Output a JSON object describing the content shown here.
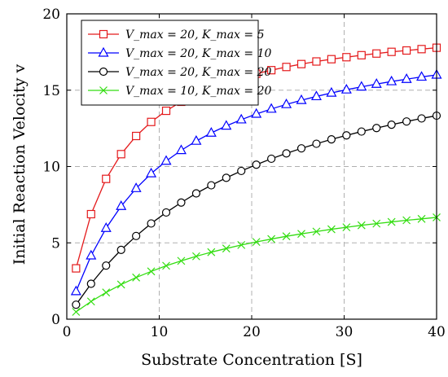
{
  "chart_data": {
    "type": "line",
    "xlabel": "Substrate Concentration [S]",
    "ylabel": "Initial Reaction Velocity v",
    "xlim": [
      0,
      40
    ],
    "ylim": [
      0,
      20
    ],
    "xticks": [
      0,
      10,
      20,
      30,
      40
    ],
    "yticks": [
      0,
      5,
      10,
      15,
      20
    ],
    "grid": "dashed",
    "legend_position": "top-left",
    "x": [
      1,
      2.625,
      4.25,
      5.875,
      7.5,
      9.125,
      10.75,
      12.375,
      14,
      15.625,
      17.25,
      18.875,
      20.5,
      22.125,
      23.75,
      25.375,
      27,
      28.625,
      30.25,
      31.875,
      33.5,
      35.125,
      36.75,
      38.375,
      40
    ],
    "series": [
      {
        "name": "V_max = 20, K_max = 5",
        "color": "#e41a1c",
        "marker": "square",
        "values": [
          3.33,
          6.88,
          9.19,
          10.81,
          12.0,
          12.92,
          13.65,
          14.24,
          14.74,
          15.15,
          15.5,
          15.81,
          16.08,
          16.31,
          16.52,
          16.71,
          16.88,
          17.03,
          17.16,
          17.29,
          17.4,
          17.51,
          17.6,
          17.69,
          17.78
        ]
      },
      {
        "name": "V_max = 20, K_max = 10",
        "color": "#0000ff",
        "marker": "triangle",
        "values": [
          1.82,
          4.16,
          5.96,
          7.4,
          8.57,
          9.54,
          10.36,
          11.06,
          11.67,
          12.2,
          12.66,
          13.07,
          13.44,
          13.77,
          14.07,
          14.34,
          14.59,
          14.82,
          15.03,
          15.22,
          15.4,
          15.57,
          15.72,
          15.87,
          16.0
        ]
      },
      {
        "name": "V_max = 20, K_max = 20",
        "color": "#000000",
        "marker": "circle",
        "values": [
          0.95,
          2.32,
          3.51,
          4.54,
          5.45,
          6.27,
          6.99,
          7.64,
          8.24,
          8.77,
          9.26,
          9.71,
          10.12,
          10.51,
          10.86,
          11.19,
          11.49,
          11.78,
          12.04,
          12.29,
          12.52,
          12.74,
          12.95,
          13.15,
          13.33
        ]
      },
      {
        "name": "V_max = 10, K_max = 20",
        "color": "#33dd11",
        "marker": "cross",
        "values": [
          0.48,
          1.16,
          1.75,
          2.27,
          2.73,
          3.13,
          3.5,
          3.82,
          4.12,
          4.39,
          4.63,
          4.86,
          5.06,
          5.25,
          5.43,
          5.59,
          5.74,
          5.89,
          6.02,
          6.15,
          6.26,
          6.37,
          6.48,
          6.57,
          6.67
        ]
      }
    ]
  }
}
